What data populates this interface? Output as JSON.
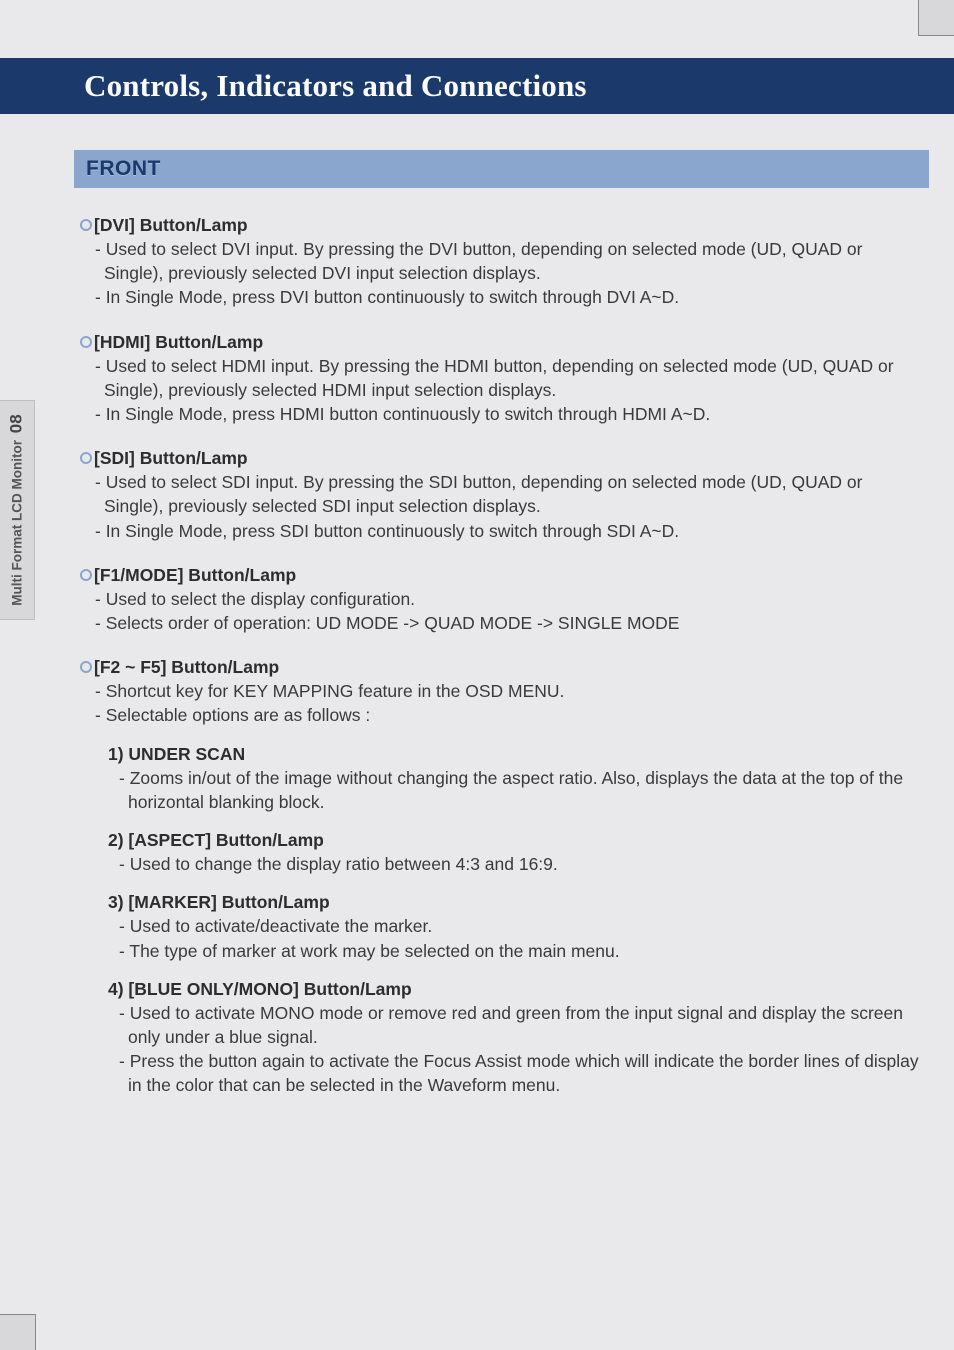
{
  "colors": {
    "page_bg": "#e9e9eb",
    "outer_bg": "#d8d8da",
    "title_bar_bg": "#1b3a6b",
    "title_text": "#fcfcfc",
    "section_band_bg": "#8aa6ce",
    "section_text": "#1b3a6b",
    "body_text": "#3a3a3a",
    "bullet_ring": "#8aa6ce"
  },
  "typography": {
    "title_fontsize": 31,
    "section_fontsize": 21,
    "body_fontsize": 17.5,
    "line_height": 1.38
  },
  "side_tab": {
    "label": "Multi Format LCD Monitor",
    "page_number": "08"
  },
  "title": "Controls, Indicators and Connections",
  "section": "FRONT",
  "items": [
    {
      "head": "[DVI] Button/Lamp",
      "lines": [
        "- Used to select DVI input. By pressing the DVI button, depending on selected mode (UD, QUAD or Single), previously selected DVI input selection displays.",
        "- In Single Mode, press DVI button continuously to switch through DVI A~D."
      ]
    },
    {
      "head": "[HDMI] Button/Lamp",
      "lines": [
        "- Used to select HDMI input. By pressing the HDMI button, depending on selected mode (UD, QUAD or Single), previously selected HDMI input selection displays.",
        "- In Single Mode, press HDMI button continuously to switch through HDMI A~D."
      ]
    },
    {
      "head": "[SDI] Button/Lamp",
      "lines": [
        "- Used to select SDI input. By pressing the SDI button, depending on selected mode (UD, QUAD or Single), previously selected SDI input selection displays.",
        "- In Single Mode, press SDI button continuously to switch through SDI A~D."
      ]
    },
    {
      "head": "[F1/MODE] Button/Lamp",
      "lines": [
        "- Used to select the display configuration.",
        "- Selects order of operation: UD MODE -> QUAD MODE -> SINGLE MODE"
      ]
    },
    {
      "head": "[F2 ~ F5] Button/Lamp",
      "lines": [
        "- Shortcut key for KEY MAPPING feature in the OSD MENU.",
        "- Selectable options are as follows :"
      ],
      "options": [
        {
          "head": "1) UNDER SCAN",
          "lines": [
            "- Zooms in/out of the image without changing the aspect ratio. Also, displays the data at the top of the horizontal blanking block."
          ]
        },
        {
          "head": "2) [ASPECT] Button/Lamp",
          "lines": [
            "- Used to change the display ratio between 4:3 and 16:9."
          ]
        },
        {
          "head": "3) [MARKER] Button/Lamp",
          "lines": [
            "- Used to activate/deactivate the marker.",
            "- The type of marker at work may be selected on the main menu."
          ]
        },
        {
          "head": "4) [BLUE ONLY/MONO] Button/Lamp",
          "lines": [
            "- Used to activate MONO mode or remove red and green from the input signal and display the screen only under a blue signal.",
            "- Press the button again to activate the Focus Assist mode which will indicate the border lines of display in the color that can be selected in the Waveform menu."
          ]
        }
      ]
    }
  ]
}
